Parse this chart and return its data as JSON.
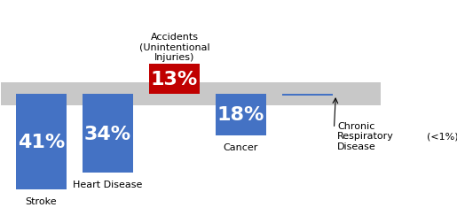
{
  "bars": [
    {
      "label": "Stroke",
      "value": 41,
      "pct": "41%",
      "color": "#4472C4",
      "direction": "down"
    },
    {
      "label": "Heart Disease",
      "value": 34,
      "pct": "34%",
      "color": "#4472C4",
      "direction": "down"
    },
    {
      "label": "Accidents\n(Unintentional\nInjuries)",
      "value": 13,
      "pct": "13%",
      "color": "#C00000",
      "direction": "up"
    },
    {
      "label": "Cancer",
      "value": 18,
      "pct": "18%",
      "color": "#4472C4",
      "direction": "down"
    },
    {
      "label": "Chronic\nRespiratory\nDisease",
      "value": 1,
      "pct": "(<1%)",
      "color": "#4472C4",
      "direction": "down"
    }
  ],
  "x_centers": [
    0.5,
    1.5,
    2.5,
    3.5,
    4.5
  ],
  "bar_width": 0.75,
  "y_band_center": 0,
  "band_half_height": 5,
  "ylim_bottom": -55,
  "ylim_top": 40,
  "xlim_left": -0.1,
  "xlim_right": 5.6,
  "bg_color": "#ffffff",
  "band_color": "#C8C8C8",
  "annotation_fontsize": 8,
  "pct_fontsize_large": 16,
  "pct_fontsize_small": 10
}
